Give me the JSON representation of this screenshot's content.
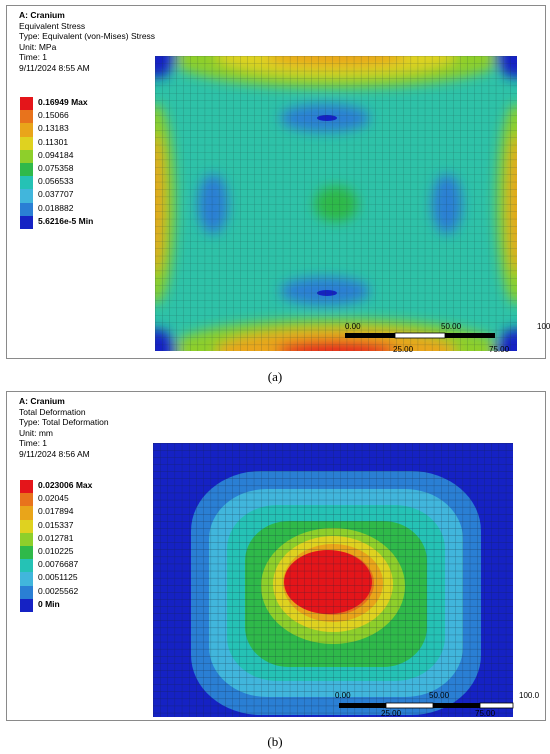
{
  "panel_a": {
    "title": "A: Cranium",
    "lines": [
      "Equivalent Stress",
      "Type: Equivalent (von-Mises) Stress",
      "Unit: MPa",
      "Time: 1",
      "9/11/2024 8:55 AM"
    ],
    "legend": [
      {
        "label": "0.16949 Max",
        "color": "#e4151a"
      },
      {
        "label": "0.15066",
        "color": "#e8731c"
      },
      {
        "label": "0.13183",
        "color": "#e9a51a"
      },
      {
        "label": "0.11301",
        "color": "#dfd220"
      },
      {
        "label": "0.094184",
        "color": "#8ecf2b"
      },
      {
        "label": "0.075358",
        "color": "#2fb94a"
      },
      {
        "label": "0.056533",
        "color": "#25c2b5"
      },
      {
        "label": "0.037707",
        "color": "#41b6dc"
      },
      {
        "label": "0.018882",
        "color": "#2a7fd4"
      },
      {
        "label": "5.6216e-5 Min",
        "color": "#1522c4"
      }
    ],
    "scale_labels": [
      "0.00",
      "50.00",
      "100",
      "25.00",
      "75.00"
    ],
    "caption": "(a)"
  },
  "panel_b": {
    "title": "A: Cranium",
    "lines": [
      "Total Deformation",
      "Type: Total Deformation",
      "Unit: mm",
      "Time: 1",
      "9/11/2024 8:56 AM"
    ],
    "legend": [
      {
        "label": "0.023006 Max",
        "color": "#e4151a"
      },
      {
        "label": "0.02045",
        "color": "#e8731c"
      },
      {
        "label": "0.017894",
        "color": "#e9a51a"
      },
      {
        "label": "0.015337",
        "color": "#dfd220"
      },
      {
        "label": "0.012781",
        "color": "#8ecf2b"
      },
      {
        "label": "0.010225",
        "color": "#2fb94a"
      },
      {
        "label": "0.0076687",
        "color": "#25c2b5"
      },
      {
        "label": "0.0051125",
        "color": "#41b6dc"
      },
      {
        "label": "0.0025562",
        "color": "#2a7fd4"
      },
      {
        "label": "0 Min",
        "color": "#1522c4"
      }
    ],
    "scale_labels": [
      "0.00",
      "50.00",
      "100.0",
      "25.00",
      "75.00"
    ],
    "caption": "(b)"
  }
}
